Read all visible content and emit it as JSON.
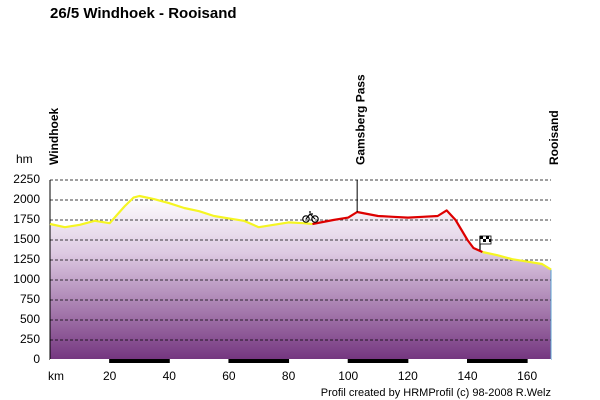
{
  "chart_data": {
    "type": "line",
    "title": "26/5 Windhoek - Rooisand",
    "x_label": "km",
    "y_label": "hm",
    "footer": "Profil created by HRMProfil (c) 98-2008 R.Welz",
    "x": [
      0,
      5,
      10,
      15,
      20,
      25,
      28,
      30,
      35,
      40,
      45,
      50,
      55,
      60,
      65,
      70,
      75,
      80,
      85,
      88,
      95,
      100,
      103,
      110,
      115,
      120,
      125,
      130,
      133,
      136,
      140,
      142,
      145,
      150,
      155,
      160,
      165,
      168
    ],
    "series": [
      {
        "color": "#f5f523",
        "values": [
          1700,
          1660,
          1690,
          1740,
          1710,
          1920,
          2030,
          2050,
          2010,
          1960,
          1900,
          1860,
          1800,
          1770,
          1740,
          1660,
          1690,
          1720,
          1710,
          1700,
          null,
          null,
          null,
          null,
          null,
          null,
          null,
          null,
          null,
          null,
          null,
          null,
          1350,
          1310,
          1260,
          1230,
          1200,
          1130
        ]
      },
      {
        "color": "#dd0000",
        "values": [
          null,
          null,
          null,
          null,
          null,
          null,
          null,
          null,
          null,
          null,
          null,
          null,
          null,
          null,
          null,
          null,
          null,
          null,
          null,
          1700,
          1750,
          1780,
          1850,
          1800,
          1790,
          1780,
          1790,
          1800,
          1870,
          1750,
          1500,
          1400,
          1350,
          null,
          null,
          null,
          null,
          null
        ]
      }
    ],
    "annotations": [
      {
        "text": "Windhoek",
        "x": 0
      },
      {
        "text": "Gamsberg Pass",
        "x": 103,
        "y": 1850
      },
      {
        "text": "Rooisand",
        "x": 168
      }
    ],
    "xlim": [
      0,
      168
    ],
    "ylim": [
      0,
      2250
    ],
    "xticks": [
      20,
      40,
      60,
      80,
      100,
      120,
      140,
      160
    ],
    "yticks": [
      0,
      250,
      500,
      750,
      1000,
      1250,
      1500,
      1750,
      2000,
      2250
    ],
    "grid": true
  }
}
